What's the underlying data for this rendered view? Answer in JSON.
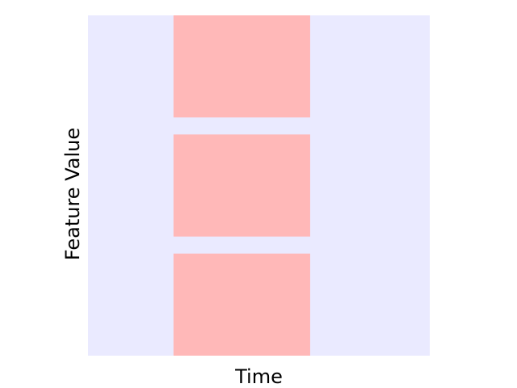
{
  "chart_data": {
    "type": "heatmap",
    "title": "",
    "xlabel": "Time",
    "ylabel": "Feature Value",
    "x_range": [
      0,
      100
    ],
    "y_range": [
      0,
      100
    ],
    "grid": false,
    "background_color": "#eaeaff",
    "highlight_color": "#ffb8b8",
    "regions": [
      {
        "name": "block-top",
        "x_start": 25,
        "x_end": 65,
        "y_start": 0,
        "y_end": 30
      },
      {
        "name": "block-middle",
        "x_start": 25,
        "x_end": 65,
        "y_start": 35,
        "y_end": 65
      },
      {
        "name": "block-bottom",
        "x_start": 25,
        "x_end": 65,
        "y_start": 70,
        "y_end": 100
      }
    ]
  }
}
